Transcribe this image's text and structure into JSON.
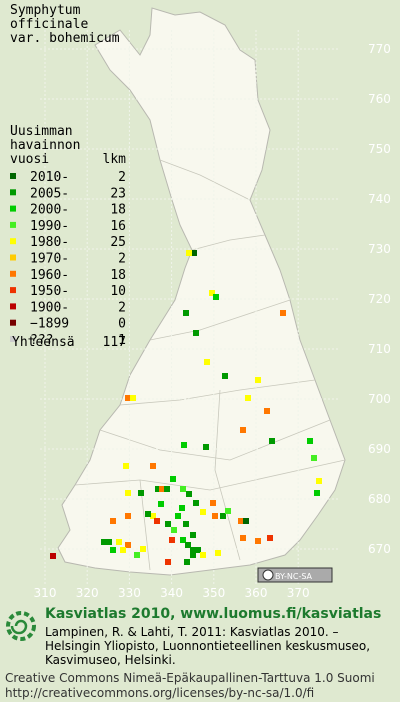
{
  "title": [
    "Symphytum",
    "officinale",
    "var. bohemicum"
  ],
  "legend": {
    "header": [
      "Uusimman",
      "havainnon"
    ],
    "year_heading": "vuosi",
    "count_heading": "lkm",
    "rows": [
      {
        "label": "2010-",
        "count": 2,
        "color": "#006600"
      },
      {
        "label": "2005-",
        "count": 23,
        "color": "#009900"
      },
      {
        "label": "2000-",
        "count": 18,
        "color": "#00cc00"
      },
      {
        "label": "1990-",
        "count": 16,
        "color": "#44ee22"
      },
      {
        "label": "1980-",
        "count": 25,
        "color": "#ffff00"
      },
      {
        "label": "1970-",
        "count": 2,
        "color": "#ffcc00"
      },
      {
        "label": "1960-",
        "count": 18,
        "color": "#ff7700"
      },
      {
        "label": "1950-",
        "count": 10,
        "color": "#ee3300"
      },
      {
        "label": "1900-",
        "count": 2,
        "color": "#bb0000"
      },
      {
        "label": "−1899",
        "count": 0,
        "color": "#770000"
      },
      {
        "label": "???",
        "count": 1,
        "color": "#cccccc"
      }
    ],
    "total_label": "Yhteensä",
    "total": 117
  },
  "grid": {
    "north": [
      770,
      760,
      750,
      740,
      730,
      720,
      710,
      700,
      690,
      680,
      670
    ],
    "east": [
      310,
      320,
      330,
      340,
      350,
      360,
      370
    ]
  },
  "badge": "BY-NC-SA",
  "footer": {
    "brand": "Kasviatlas 2010, www.luomus.fi/kasviatlas",
    "citation": [
      "Lampinen, R. & Lahti, T. 2011: Kasviatlas 2010. –",
      "Helsingin Yliopisto, Luonnontieteellinen keskusmuseo,",
      "Kasvimuseo, Helsinki."
    ],
    "license": [
      "Creative Commons Nimeä-Epäkaupallinen-Tarttuva 1.0 Suomi",
      "http://creativecommons.org/licenses/by-nc-sa/1.0/fi"
    ]
  }
}
